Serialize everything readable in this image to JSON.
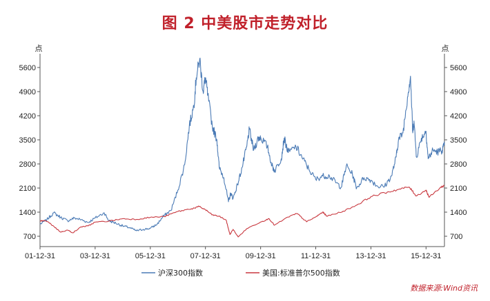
{
  "chart_data": {
    "type": "line",
    "title": "图 2 中美股市走势对比",
    "y_left_unit": "点",
    "y_right_unit": "点",
    "ylim": [
      400,
      6000
    ],
    "y_ticks": [
      700,
      1400,
      2100,
      2800,
      3500,
      4200,
      4900,
      5600
    ],
    "x_tick_labels": [
      "01-12-31",
      "03-12-31",
      "05-12-31",
      "07-12-31",
      "09-12-31",
      "11-12-31",
      "13-12-31",
      "15-12-31"
    ],
    "xlim": [
      "2001-12-31",
      "2016-08-31"
    ],
    "series": [
      {
        "name": "沪深300指数",
        "color": "#4a7ab5",
        "points": [
          [
            "2001-12-31",
            1050
          ],
          [
            "2002-03-31",
            1180
          ],
          [
            "2002-06-30",
            1380
          ],
          [
            "2002-09-30",
            1250
          ],
          [
            "2002-12-31",
            1150
          ],
          [
            "2003-03-31",
            1230
          ],
          [
            "2003-06-30",
            1180
          ],
          [
            "2003-09-30",
            1100
          ],
          [
            "2003-12-31",
            1230
          ],
          [
            "2004-04-30",
            1380
          ],
          [
            "2004-06-30",
            1150
          ],
          [
            "2004-09-30",
            1080
          ],
          [
            "2004-12-31",
            1000
          ],
          [
            "2005-03-31",
            950
          ],
          [
            "2005-06-30",
            860
          ],
          [
            "2005-09-30",
            900
          ],
          [
            "2005-12-31",
            930
          ],
          [
            "2006-03-31",
            1050
          ],
          [
            "2006-06-30",
            1300
          ],
          [
            "2006-09-30",
            1450
          ],
          [
            "2006-12-31",
            2040
          ],
          [
            "2007-03-31",
            2780
          ],
          [
            "2007-05-31",
            3900
          ],
          [
            "2007-07-31",
            4500
          ],
          [
            "2007-08-31",
            5300
          ],
          [
            "2007-10-16",
            5850
          ],
          [
            "2007-11-30",
            4900
          ],
          [
            "2007-12-31",
            5300
          ],
          [
            "2008-01-31",
            4800
          ],
          [
            "2008-03-31",
            3900
          ],
          [
            "2008-05-31",
            3500
          ],
          [
            "2008-06-30",
            2700
          ],
          [
            "2008-08-31",
            2400
          ],
          [
            "2008-10-31",
            1700
          ],
          [
            "2008-11-30",
            1950
          ],
          [
            "2008-12-31",
            1800
          ],
          [
            "2009-02-28",
            2200
          ],
          [
            "2009-04-30",
            2700
          ],
          [
            "2009-06-30",
            3300
          ],
          [
            "2009-08-03",
            3800
          ],
          [
            "2009-09-30",
            3200
          ],
          [
            "2009-11-30",
            3550
          ],
          [
            "2009-12-31",
            3580
          ],
          [
            "2010-03-31",
            3300
          ],
          [
            "2010-05-31",
            2750
          ],
          [
            "2010-07-05",
            2600
          ],
          [
            "2010-09-30",
            2950
          ],
          [
            "2010-11-08",
            3550
          ],
          [
            "2010-12-31",
            3130
          ],
          [
            "2011-04-15",
            3300
          ],
          [
            "2011-06-30",
            3000
          ],
          [
            "2011-09-30",
            2650
          ],
          [
            "2011-12-31",
            2350
          ],
          [
            "2012-03-31",
            2450
          ],
          [
            "2012-06-30",
            2450
          ],
          [
            "2012-09-30",
            2250
          ],
          [
            "2012-12-03",
            2120
          ],
          [
            "2013-02-08",
            2750
          ],
          [
            "2013-04-30",
            2500
          ],
          [
            "2013-06-25",
            2100
          ],
          [
            "2013-09-30",
            2400
          ],
          [
            "2013-12-31",
            2330
          ],
          [
            "2014-03-31",
            2150
          ],
          [
            "2014-06-30",
            2150
          ],
          [
            "2014-09-30",
            2450
          ],
          [
            "2014-11-30",
            3000
          ],
          [
            "2014-12-31",
            3500
          ],
          [
            "2015-02-28",
            3700
          ],
          [
            "2015-04-30",
            4750
          ],
          [
            "2015-06-08",
            5350
          ],
          [
            "2015-07-08",
            3700
          ],
          [
            "2015-07-24",
            4050
          ],
          [
            "2015-08-26",
            3000
          ],
          [
            "2015-10-31",
            3550
          ],
          [
            "2015-12-31",
            3750
          ],
          [
            "2016-01-28",
            2950
          ],
          [
            "2016-03-31",
            3200
          ],
          [
            "2016-05-31",
            3150
          ],
          [
            "2016-07-31",
            3200
          ],
          [
            "2016-08-31",
            3350
          ]
        ]
      },
      {
        "name": "美国:标准普尔500指数",
        "color": "#c8373e",
        "points": [
          [
            "2001-12-31",
            1150
          ],
          [
            "2002-03-31",
            1140
          ],
          [
            "2002-06-30",
            990
          ],
          [
            "2002-09-30",
            820
          ],
          [
            "2002-12-31",
            880
          ],
          [
            "2003-03-11",
            800
          ],
          [
            "2003-06-30",
            975
          ],
          [
            "2003-09-30",
            1000
          ],
          [
            "2003-12-31",
            1110
          ],
          [
            "2004-06-30",
            1140
          ],
          [
            "2004-12-31",
            1210
          ],
          [
            "2005-06-30",
            1190
          ],
          [
            "2005-12-31",
            1250
          ],
          [
            "2006-06-30",
            1270
          ],
          [
            "2006-12-31",
            1420
          ],
          [
            "2007-06-30",
            1500
          ],
          [
            "2007-10-09",
            1560
          ],
          [
            "2007-12-31",
            1470
          ],
          [
            "2008-03-31",
            1320
          ],
          [
            "2008-06-30",
            1280
          ],
          [
            "2008-09-30",
            1170
          ],
          [
            "2008-11-20",
            750
          ],
          [
            "2008-12-31",
            900
          ],
          [
            "2009-03-09",
            680
          ],
          [
            "2009-06-30",
            920
          ],
          [
            "2009-12-31",
            1115
          ],
          [
            "2010-04-23",
            1210
          ],
          [
            "2010-07-02",
            1020
          ],
          [
            "2010-12-31",
            1260
          ],
          [
            "2011-04-29",
            1360
          ],
          [
            "2011-08-31",
            1120
          ],
          [
            "2011-12-31",
            1260
          ],
          [
            "2012-03-31",
            1400
          ],
          [
            "2012-06-01",
            1280
          ],
          [
            "2012-12-31",
            1430
          ],
          [
            "2013-06-30",
            1610
          ],
          [
            "2013-12-31",
            1850
          ],
          [
            "2014-06-30",
            1960
          ],
          [
            "2014-12-31",
            2060
          ],
          [
            "2015-05-21",
            2130
          ],
          [
            "2015-08-25",
            1870
          ],
          [
            "2015-12-31",
            2040
          ],
          [
            "2016-02-11",
            1830
          ],
          [
            "2016-06-30",
            2100
          ],
          [
            "2016-08-31",
            2180
          ]
        ]
      }
    ],
    "source": "数据来源:Wind资讯"
  }
}
